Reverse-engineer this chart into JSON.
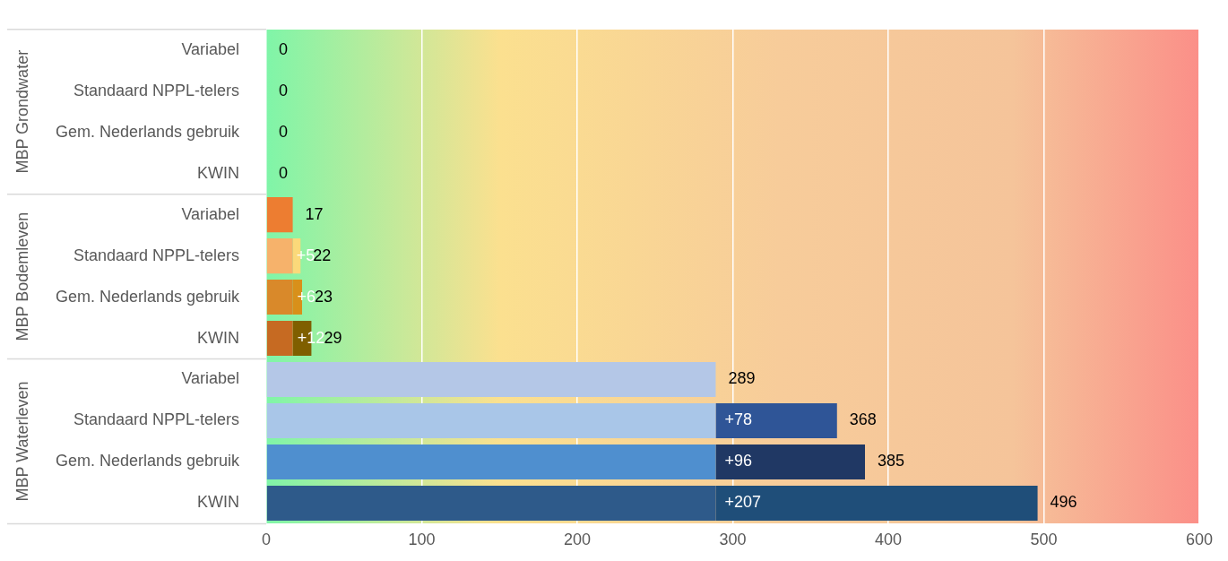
{
  "chart_data": {
    "type": "bar",
    "orientation": "horizontal",
    "stacked": true,
    "categories": [
      "Variabel",
      "Standaard NPPL-telers",
      "Gem. Nederlands gebruik",
      "KWIN",
      "Variabel",
      "Standaard NPPL-telers",
      "Gem. Nederlands gebruik",
      "KWIN",
      "Variabel",
      "Standaard NPPL-telers",
      "Gem. Nederlands gebruik",
      "KWIN"
    ],
    "series": [
      {
        "colors": [
          "#ed7d31",
          "#ed7d31",
          "#ed7d31",
          "#ed7d31",
          "#ed7d31",
          "#f6b26b",
          "#d9892a",
          "#c66a22",
          "#b4c7e7",
          "#a9c6e8",
          "#4f8fcf",
          "#2e5a8a"
        ],
        "values": [
          0,
          0,
          0,
          0,
          17,
          17,
          17,
          17,
          289,
          289,
          289,
          289
        ]
      },
      {
        "colors": [
          "#ffd966",
          "#ffd966",
          "#ffd966",
          "#ffd966",
          "#ffd966",
          "#fbd97a",
          "#d8901a",
          "#7f5f00",
          "#2f5597",
          "#2f5597",
          "#203864",
          "#1f4e79"
        ],
        "values": [
          null,
          null,
          null,
          null,
          null,
          5,
          6,
          12,
          null,
          78,
          96,
          207
        ],
        "value_labels": [
          null,
          null,
          null,
          null,
          null,
          "+5",
          "+6",
          "+12",
          null,
          "+78",
          "+96",
          "+207"
        ]
      }
    ],
    "totals": [
      "0",
      "0",
      "0",
      "0",
      "17",
      "22",
      "23",
      "29",
      "289",
      "368",
      "385",
      "496"
    ],
    "annotations": [
      "MBP Grondwater",
      "MBP Bodemleven",
      "MBP Waterleven"
    ],
    "xlim": [
      0,
      600
    ],
    "xticks": [
      0,
      100,
      200,
      300,
      400,
      500,
      600
    ],
    "grid": "x",
    "legend": false
  }
}
